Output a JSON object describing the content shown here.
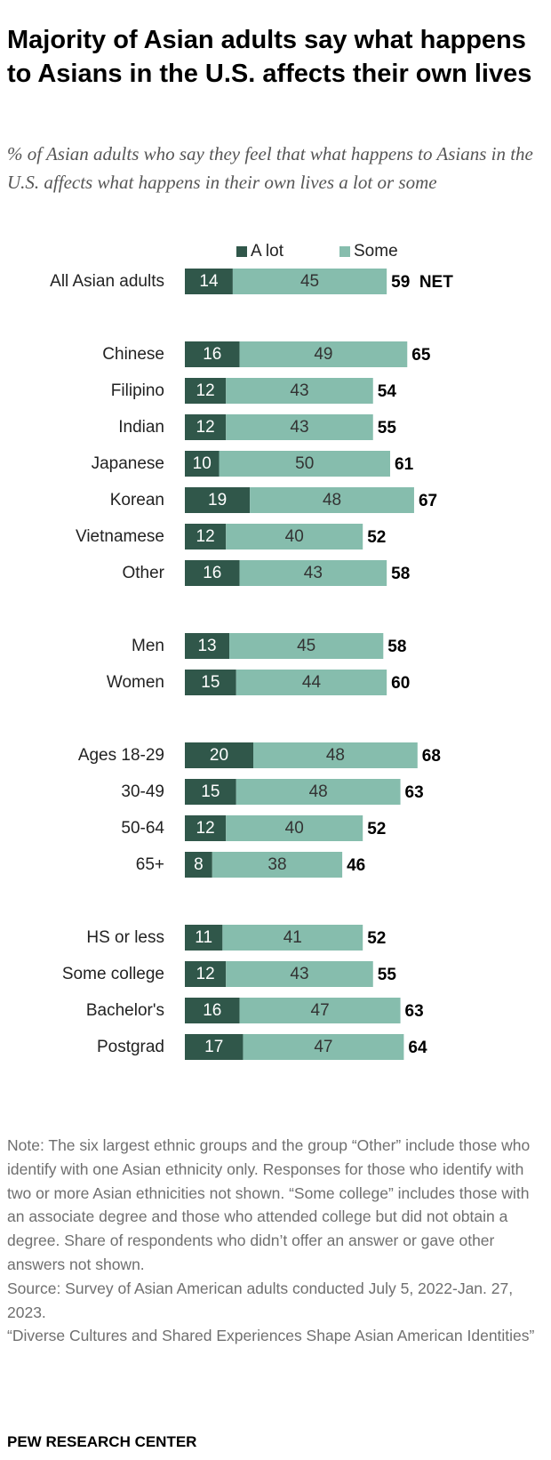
{
  "title": "Majority of Asian adults say what happens to Asians in the U.S. affects their own lives",
  "subtitle": "% of Asian adults who say they feel that what happens to Asians in the U.S. affects what happens in their own lives a lot or some",
  "colors": {
    "a_lot": "#30574a",
    "some": "#86bdad"
  },
  "chart_data": {
    "type": "bar",
    "orientation": "horizontal",
    "stacked": true,
    "legend": [
      "A lot",
      "Some"
    ],
    "net_suffix": "NET",
    "rows": [
      {
        "label": "All Asian adults",
        "a_lot": 14,
        "some": 45,
        "net": 59,
        "group": 0
      },
      {
        "label": "Chinese",
        "a_lot": 16,
        "some": 49,
        "net": 65,
        "group": 1
      },
      {
        "label": "Filipino",
        "a_lot": 12,
        "some": 43,
        "net": 54,
        "group": 1
      },
      {
        "label": "Indian",
        "a_lot": 12,
        "some": 43,
        "net": 55,
        "group": 1
      },
      {
        "label": "Japanese",
        "a_lot": 10,
        "some": 50,
        "net": 61,
        "group": 1
      },
      {
        "label": "Korean",
        "a_lot": 19,
        "some": 48,
        "net": 67,
        "group": 1
      },
      {
        "label": "Vietnamese",
        "a_lot": 12,
        "some": 40,
        "net": 52,
        "group": 1
      },
      {
        "label": "Other",
        "a_lot": 16,
        "some": 43,
        "net": 58,
        "group": 1
      },
      {
        "label": "Men",
        "a_lot": 13,
        "some": 45,
        "net": 58,
        "group": 2
      },
      {
        "label": "Women",
        "a_lot": 15,
        "some": 44,
        "net": 60,
        "group": 2
      },
      {
        "label": "Ages 18-29",
        "a_lot": 20,
        "some": 48,
        "net": 68,
        "group": 3
      },
      {
        "label": "30-49",
        "a_lot": 15,
        "some": 48,
        "net": 63,
        "group": 3
      },
      {
        "label": "50-64",
        "a_lot": 12,
        "some": 40,
        "net": 52,
        "group": 3
      },
      {
        "label": "65+",
        "a_lot": 8,
        "some": 38,
        "net": 46,
        "group": 3
      },
      {
        "label": "HS or less",
        "a_lot": 11,
        "some": 41,
        "net": 52,
        "group": 4
      },
      {
        "label": "Some college",
        "a_lot": 12,
        "some": 43,
        "net": 55,
        "group": 4
      },
      {
        "label": "Bachelor's",
        "a_lot": 16,
        "some": 47,
        "net": 63,
        "group": 4
      },
      {
        "label": "Postgrad",
        "a_lot": 17,
        "some": 47,
        "net": 64,
        "group": 4
      }
    ]
  },
  "notes": {
    "note": "Note: The six largest ethnic groups and the group “Other” include those who identify with one Asian ethnicity only. Responses for those who identify with two or more Asian ethnicities not shown. “Some college” includes those with an associate degree and those who attended college but did not obtain a degree. Share of respondents who didn’t offer an answer or gave other answers not shown.",
    "source": "Source: Survey of Asian American adults conducted July 5, 2022-Jan. 27, 2023.",
    "report": "“Diverse Cultures and Shared Experiences Shape Asian American Identities”"
  },
  "brand": "PEW RESEARCH CENTER"
}
